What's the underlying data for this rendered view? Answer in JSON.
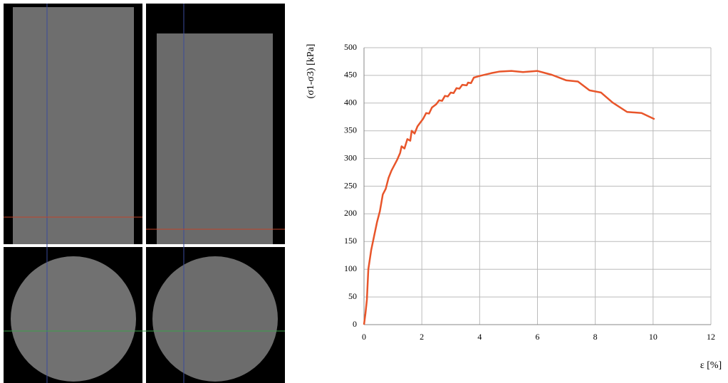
{
  "chart_data": {
    "type": "line",
    "ylabel": "(σ1-σ3) [kPa]",
    "xlabel": "ε [%]",
    "x": [
      0,
      0.05,
      0.1,
      0.15,
      0.25,
      0.35,
      0.45,
      0.55,
      0.65,
      0.75,
      0.85,
      0.95,
      1.05,
      1.15,
      1.25,
      1.3,
      1.4,
      1.5,
      1.6,
      1.65,
      1.75,
      1.85,
      1.95,
      2.05,
      2.15,
      2.25,
      2.35,
      2.5,
      2.6,
      2.7,
      2.8,
      2.9,
      3.0,
      3.1,
      3.2,
      3.3,
      3.4,
      3.55,
      3.6,
      3.7,
      3.8,
      4.0,
      4.4,
      4.7,
      5.1,
      5.5,
      6.0,
      6.5,
      7.0,
      7.4,
      7.8,
      8.2,
      8.6,
      9.1,
      9.6,
      10.05
    ],
    "values": [
      0,
      20,
      45,
      100,
      135,
      160,
      185,
      205,
      235,
      245,
      265,
      278,
      288,
      298,
      310,
      322,
      318,
      335,
      332,
      350,
      345,
      358,
      365,
      372,
      382,
      381,
      392,
      398,
      405,
      404,
      413,
      412,
      419,
      418,
      427,
      426,
      433,
      432,
      437,
      436,
      446,
      449,
      454,
      457,
      458,
      456,
      458,
      451,
      441,
      439,
      423,
      419,
      401,
      384,
      382,
      371
    ],
    "color": "#e8552a",
    "xlim": [
      0,
      12
    ],
    "xticks": [
      0,
      2,
      4,
      6,
      8,
      10,
      12
    ],
    "ylim": [
      0,
      500
    ],
    "yticks": [
      0,
      50,
      100,
      150,
      200,
      250,
      300,
      350,
      400,
      450,
      500
    ],
    "grid": true
  }
}
